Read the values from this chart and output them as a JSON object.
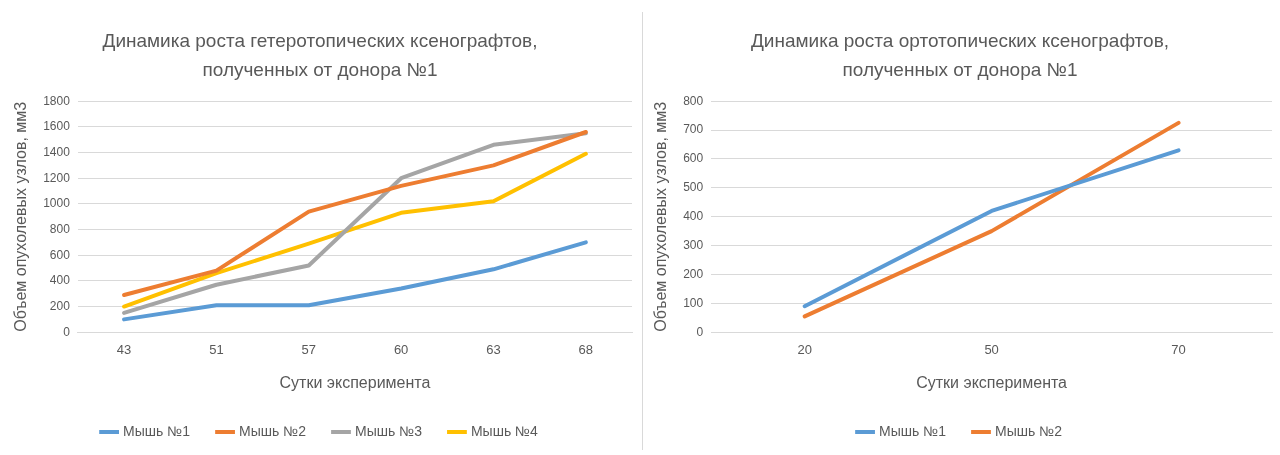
{
  "chart_data": [
    {
      "type": "line",
      "title": "Динамика роста гетеротопических ксенографтов, полученных от донора №1",
      "xlabel": "Сутки эксперимента",
      "ylabel": "Объем опухолевых узлов, мм3",
      "categories": [
        "43",
        "51",
        "57",
        "60",
        "63",
        "68"
      ],
      "series": [
        {
          "name": "Мышь №1",
          "color": "#5b9bd5",
          "values": [
            100,
            210,
            210,
            340,
            490,
            700
          ]
        },
        {
          "name": "Мышь №2",
          "color": "#ed7d31",
          "values": [
            290,
            480,
            940,
            1140,
            1300,
            1560
          ]
        },
        {
          "name": "Мышь №3",
          "color": "#a5a5a5",
          "values": [
            150,
            370,
            520,
            1200,
            1460,
            1550
          ]
        },
        {
          "name": "Мышь №4",
          "color": "#ffc000",
          "values": [
            200,
            460,
            690,
            930,
            1020,
            1390
          ]
        }
      ],
      "ylim": [
        0,
        1800
      ],
      "yticks": [
        0,
        200,
        400,
        600,
        800,
        1000,
        1200,
        1400,
        1600,
        1800
      ],
      "grid": "y",
      "legend": "bottom",
      "marker": "none",
      "line_style": "solid"
    },
    {
      "type": "line",
      "title": "Динамика роста ортотопических ксенографтов, полученных от донора №1",
      "xlabel": "Сутки эксперимента",
      "ylabel": "Объем опухолевых узлов, мм3",
      "categories": [
        "20",
        "50",
        "70"
      ],
      "series": [
        {
          "name": "Мышь №1",
          "color": "#5b9bd5",
          "values": [
            90,
            420,
            630
          ]
        },
        {
          "name": "Мышь №2",
          "color": "#ed7d31",
          "values": [
            55,
            350,
            725
          ]
        }
      ],
      "ylim": [
        0,
        800
      ],
      "yticks": [
        0,
        100,
        200,
        300,
        400,
        500,
        600,
        700,
        800
      ],
      "grid": "y",
      "legend": "bottom",
      "marker": "none",
      "line_style": "solid"
    }
  ]
}
